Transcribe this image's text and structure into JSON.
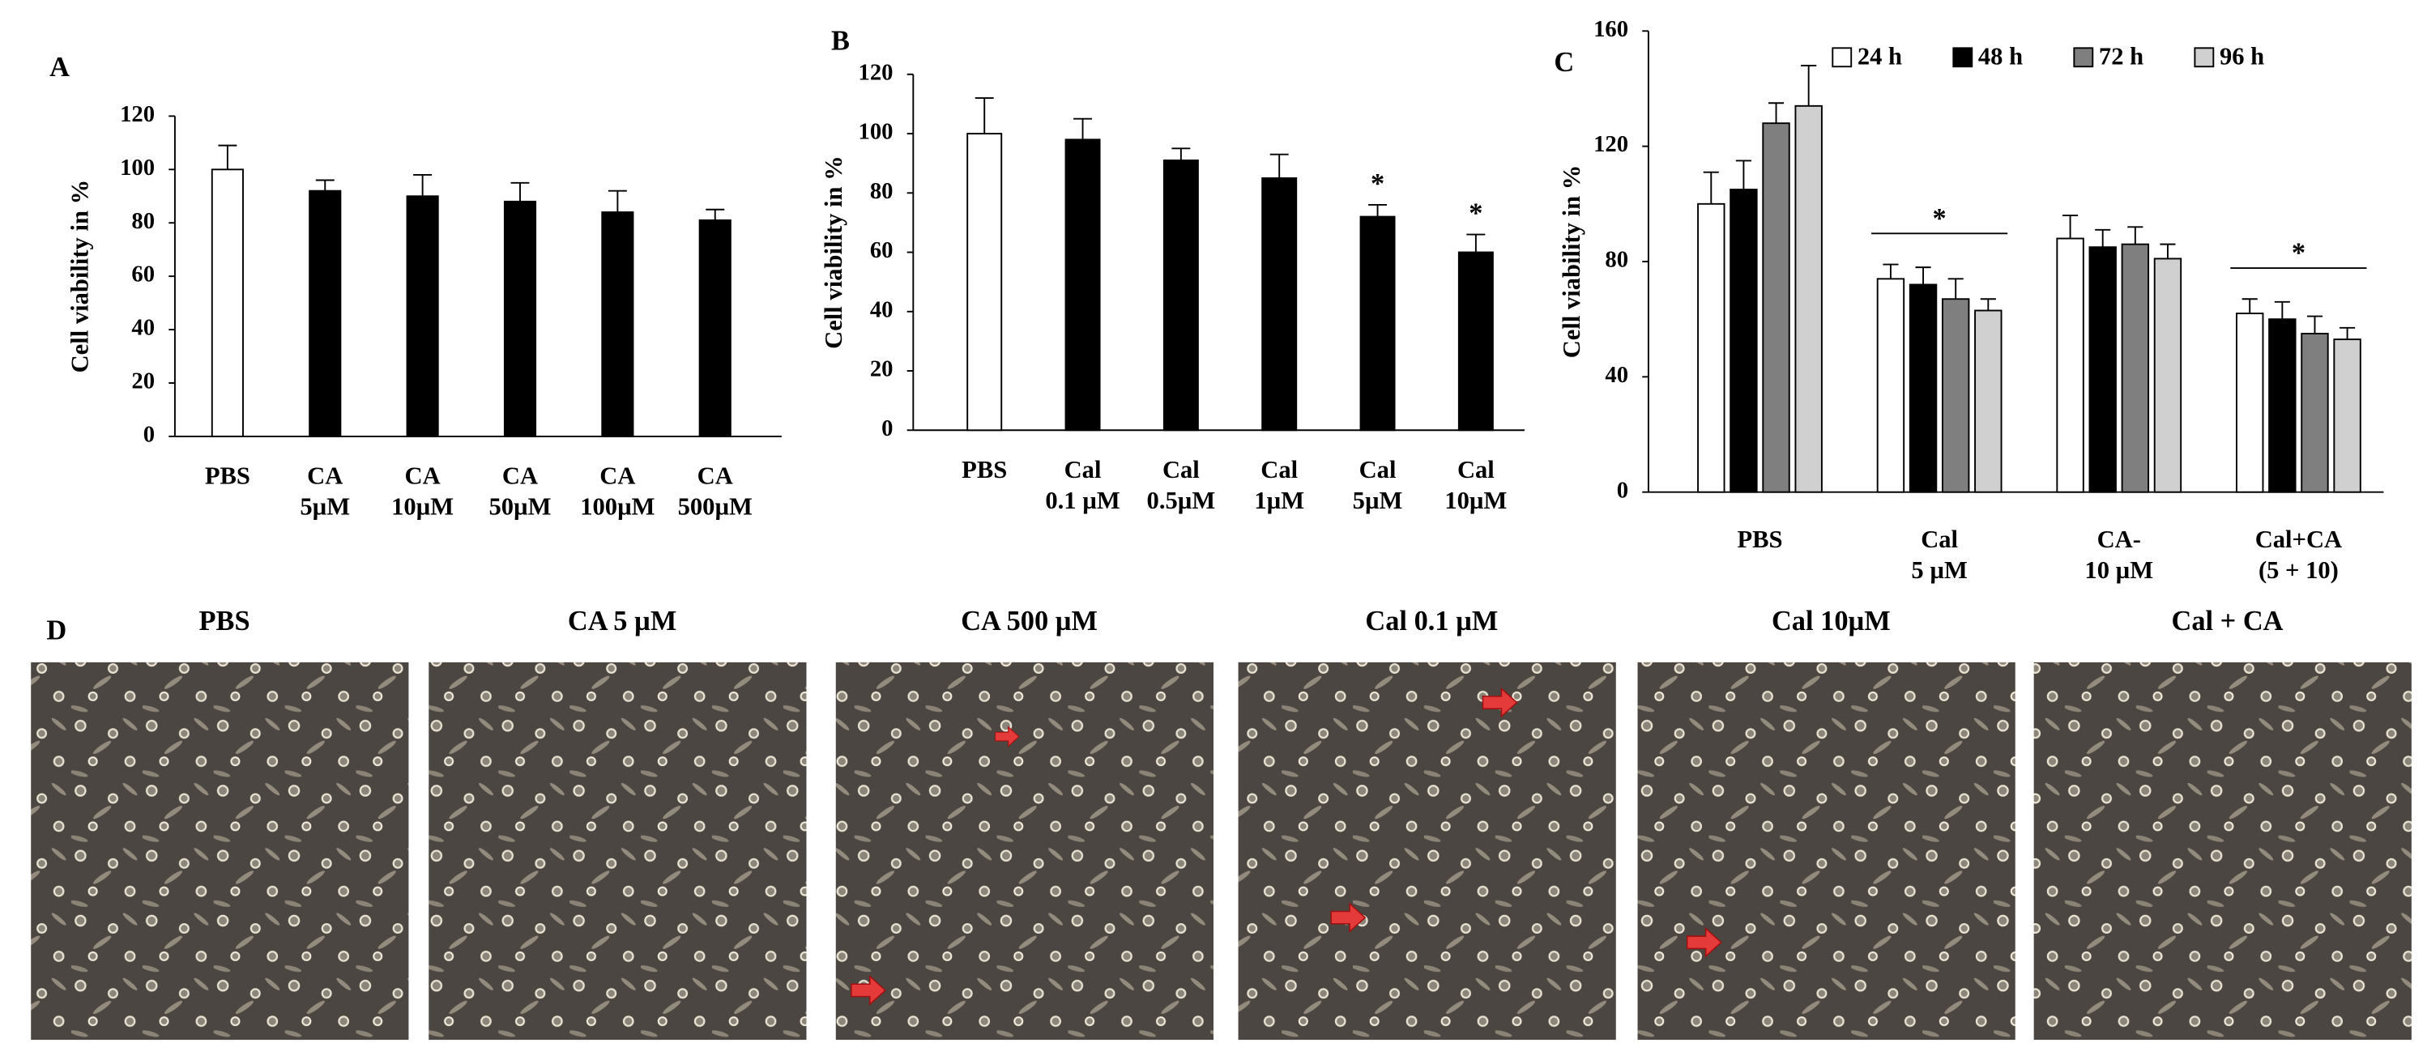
{
  "chart_data": [
    {
      "type": "bar",
      "panel": "A",
      "y_label": "Cell viability in %",
      "categories": [
        [
          "PBS"
        ],
        [
          "CA",
          "5µM"
        ],
        [
          "CA",
          "10µM"
        ],
        [
          "CA",
          "50µM"
        ],
        [
          "CA",
          "100µM"
        ],
        [
          "CA",
          "500µM"
        ]
      ],
      "values": [
        100,
        92,
        90,
        88,
        84,
        81
      ],
      "errors": [
        9,
        4,
        8,
        7,
        8,
        4
      ],
      "colors": [
        "#ffffff",
        "#000000",
        "#000000",
        "#000000",
        "#000000",
        "#000000"
      ],
      "ylim": [
        0,
        120
      ],
      "yticks": [
        0,
        20,
        40,
        60,
        80,
        100,
        120
      ]
    },
    {
      "type": "bar",
      "panel": "B",
      "y_label": "Cell viability in %",
      "categories": [
        [
          "PBS"
        ],
        [
          "Cal",
          "0.1 µM"
        ],
        [
          "Cal",
          "0.5µM"
        ],
        [
          "Cal",
          "1µM"
        ],
        [
          "Cal",
          "5µM"
        ],
        [
          "Cal",
          "10µM"
        ]
      ],
      "values": [
        100,
        98,
        91,
        85,
        72,
        60
      ],
      "errors": [
        12,
        7,
        4,
        8,
        4,
        6
      ],
      "colors": [
        "#ffffff",
        "#000000",
        "#000000",
        "#000000",
        "#000000",
        "#000000"
      ],
      "annotations": [
        {
          "text": "*",
          "category": 4
        },
        {
          "text": "*",
          "category": 5
        }
      ],
      "ylim": [
        0,
        120
      ],
      "yticks": [
        0,
        20,
        40,
        60,
        80,
        100,
        120
      ]
    },
    {
      "type": "grouped_bar",
      "panel": "C",
      "y_label": "Cell viability in %",
      "categories": [
        [
          "PBS"
        ],
        [
          "Cal",
          "5 µM"
        ],
        [
          "CA-",
          "10 µM"
        ],
        [
          "Cal+CA",
          "(5 + 10)"
        ]
      ],
      "series": [
        {
          "name": "24 h",
          "color": "#ffffff",
          "values": [
            100,
            74,
            88,
            62
          ],
          "errors": [
            11,
            5,
            8,
            5
          ]
        },
        {
          "name": "48 h",
          "color": "#000000",
          "values": [
            105,
            72,
            85,
            60
          ],
          "errors": [
            10,
            6,
            6,
            6
          ]
        },
        {
          "name": "72 h",
          "color": "#7f7f7f",
          "values": [
            128,
            67,
            86,
            55
          ],
          "errors": [
            7,
            7,
            6,
            6
          ]
        },
        {
          "name": "96 h",
          "color": "#d0d0d0",
          "values": [
            134,
            63,
            81,
            53
          ],
          "errors": [
            14,
            4,
            5,
            4
          ]
        }
      ],
      "annotations": [
        {
          "text": "*",
          "category": 1
        },
        {
          "text": "*",
          "category": 3
        }
      ],
      "ylim": [
        0,
        160
      ],
      "yticks": [
        0,
        40,
        80,
        120,
        160
      ]
    }
  ],
  "panel_d": {
    "label": "D",
    "images": [
      {
        "title": "PBS"
      },
      {
        "title": "CA 5 µM"
      },
      {
        "title": "CA 500 µM"
      },
      {
        "title": "Cal 0.1 µM"
      },
      {
        "title": "Cal  10µM"
      },
      {
        "title": "Cal + CA"
      }
    ]
  }
}
